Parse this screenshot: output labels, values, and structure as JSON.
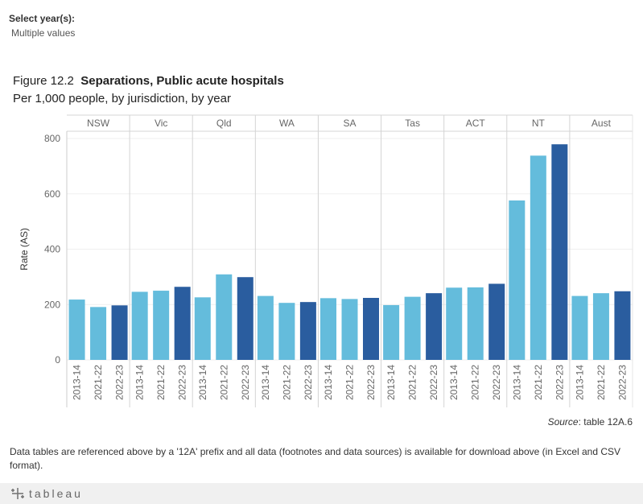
{
  "filter": {
    "label": "Select year(s):",
    "value": "Multiple values"
  },
  "figure": {
    "number": "Figure 12.2",
    "title": "Separations, Public acute hospitals",
    "subtitle": "Per 1,000 people, by jurisdiction, by year"
  },
  "source": {
    "label": "Source",
    "text": ": table 12A.6"
  },
  "footnote": "Data tables are referenced above by a '12A' prefix and all data (footnotes and data sources) is available for download above (in Excel and CSV format).",
  "footer": {
    "logo_text": "tableau",
    "logo_icon": "tableau-logo-icon"
  },
  "colors": {
    "light": "#64bcdc",
    "dark": "#2a5d9f",
    "accent": "#64bcdc"
  },
  "chart_data": {
    "type": "bar",
    "ylabel": "Rate (AS)",
    "ylim": [
      0,
      820
    ],
    "yticks": [
      0,
      200,
      400,
      600,
      800
    ],
    "grid": true,
    "categories": [
      "NSW",
      "Vic",
      "Qld",
      "WA",
      "SA",
      "Tas",
      "ACT",
      "NT",
      "Aust"
    ],
    "years": [
      "2013-14",
      "2021-22",
      "2022-23"
    ],
    "year_colors": [
      "#64bcdc",
      "#64bcdc",
      "#2a5d9f"
    ],
    "values": [
      [
        218,
        191,
        197
      ],
      [
        246,
        250,
        264
      ],
      [
        226,
        309,
        299
      ],
      [
        231,
        206,
        209
      ],
      [
        223,
        220,
        224
      ],
      [
        198,
        228,
        241
      ],
      [
        261,
        262,
        275
      ],
      [
        576,
        738,
        779
      ],
      [
        231,
        241,
        248
      ]
    ]
  }
}
